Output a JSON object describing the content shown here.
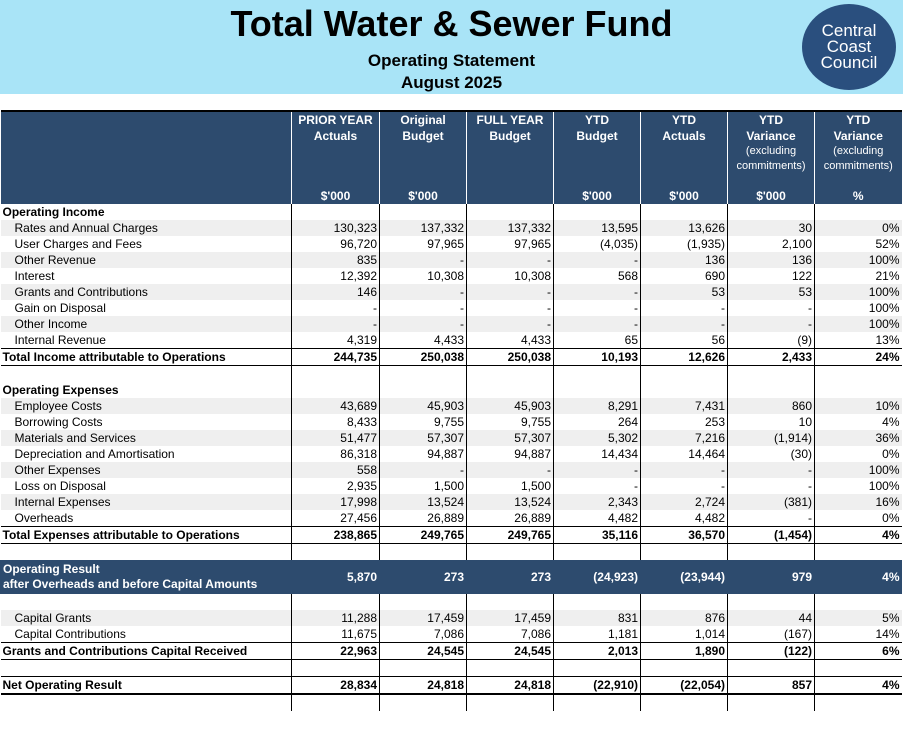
{
  "header": {
    "title": "Total Water & Sewer Fund",
    "subtitle": "Operating Statement",
    "period": "August 2025",
    "logo_lines": [
      "Central",
      "Coast",
      "Council"
    ]
  },
  "columns": [
    {
      "line1": "PRIOR YEAR",
      "line2": "Actuals",
      "line3": "",
      "line4": "",
      "unit": "$'000"
    },
    {
      "line1": "Original",
      "line2": "Budget",
      "line3": "",
      "line4": "",
      "unit": "$'000"
    },
    {
      "line1": "FULL YEAR",
      "line2": "Budget",
      "line3": "",
      "line4": "",
      "unit": ""
    },
    {
      "line1": "YTD",
      "line2": "Budget",
      "line3": "",
      "line4": "",
      "unit": "$'000"
    },
    {
      "line1": "YTD",
      "line2": "Actuals",
      "line3": "",
      "line4": "",
      "unit": "$'000"
    },
    {
      "line1": "YTD",
      "line2": "Variance",
      "line3": "(excluding",
      "line4": "commitments)",
      "unit": "$'000"
    },
    {
      "line1": "YTD",
      "line2": "Variance",
      "line3": "(excluding",
      "line4": "commitments)",
      "unit": "%"
    }
  ],
  "rows": [
    {
      "kind": "section",
      "label": "Operating Income",
      "values": [
        "",
        "",
        "",
        "",
        "",
        "",
        ""
      ]
    },
    {
      "kind": "item",
      "label": "Rates and Annual Charges",
      "values": [
        "130,323",
        "137,332",
        "137,332",
        "13,595",
        "13,626",
        "30",
        "0%"
      ]
    },
    {
      "kind": "item",
      "label": "User Charges and Fees",
      "values": [
        "96,720",
        "97,965",
        "97,965",
        "(4,035)",
        "(1,935)",
        "2,100",
        "52%"
      ]
    },
    {
      "kind": "item",
      "label": "Other Revenue",
      "values": [
        "835",
        "-",
        "-",
        "-",
        "136",
        "136",
        "100%"
      ]
    },
    {
      "kind": "item",
      "label": "Interest",
      "values": [
        "12,392",
        "10,308",
        "10,308",
        "568",
        "690",
        "122",
        "21%"
      ]
    },
    {
      "kind": "item",
      "label": "Grants and Contributions",
      "values": [
        "146",
        "-",
        "-",
        "-",
        "53",
        "53",
        "100%"
      ]
    },
    {
      "kind": "item",
      "label": "Gain on Disposal",
      "values": [
        "-",
        "-",
        "-",
        "-",
        "-",
        "-",
        "100%"
      ]
    },
    {
      "kind": "item",
      "label": "Other Income",
      "values": [
        "-",
        "-",
        "-",
        "-",
        "-",
        "-",
        "100%"
      ]
    },
    {
      "kind": "item",
      "label": "Internal Revenue",
      "values": [
        "4,319",
        "4,433",
        "4,433",
        "65",
        "56",
        "(9)",
        "13%"
      ]
    },
    {
      "kind": "total",
      "label": "Total Income attributable to Operations",
      "values": [
        "244,735",
        "250,038",
        "250,038",
        "10,193",
        "12,626",
        "2,433",
        "24%"
      ]
    },
    {
      "kind": "blank",
      "label": "",
      "values": [
        "",
        "",
        "",
        "",
        "",
        "",
        ""
      ]
    },
    {
      "kind": "section",
      "label": "Operating Expenses",
      "values": [
        "",
        "",
        "",
        "",
        "",
        "",
        ""
      ]
    },
    {
      "kind": "item",
      "label": "Employee Costs",
      "values": [
        "43,689",
        "45,903",
        "45,903",
        "8,291",
        "7,431",
        "860",
        "10%"
      ]
    },
    {
      "kind": "item",
      "label": "Borrowing Costs",
      "values": [
        "8,433",
        "9,755",
        "9,755",
        "264",
        "253",
        "10",
        "4%"
      ]
    },
    {
      "kind": "item",
      "label": "Materials and Services",
      "values": [
        "51,477",
        "57,307",
        "57,307",
        "5,302",
        "7,216",
        "(1,914)",
        "36%"
      ]
    },
    {
      "kind": "item",
      "label": "Depreciation and Amortisation",
      "values": [
        "86,318",
        "94,887",
        "94,887",
        "14,434",
        "14,464",
        "(30)",
        "0%"
      ]
    },
    {
      "kind": "item",
      "label": "Other Expenses",
      "values": [
        "558",
        "-",
        "-",
        "-",
        "-",
        "-",
        "100%"
      ]
    },
    {
      "kind": "item",
      "label": "Loss on Disposal",
      "values": [
        "2,935",
        "1,500",
        "1,500",
        "-",
        "-",
        "-",
        "100%"
      ]
    },
    {
      "kind": "item",
      "label": "Internal Expenses",
      "values": [
        "17,998",
        "13,524",
        "13,524",
        "2,343",
        "2,724",
        "(381)",
        "16%"
      ]
    },
    {
      "kind": "item",
      "label": "Overheads",
      "values": [
        "27,456",
        "26,889",
        "26,889",
        "4,482",
        "4,482",
        "-",
        "0%"
      ]
    },
    {
      "kind": "total",
      "label": "Total Expenses attributable to Operations",
      "values": [
        "238,865",
        "249,765",
        "249,765",
        "35,116",
        "36,570",
        "(1,454)",
        "4%"
      ]
    },
    {
      "kind": "blank",
      "label": "",
      "values": [
        "",
        "",
        "",
        "",
        "",
        "",
        ""
      ]
    },
    {
      "kind": "result",
      "label": "Operating Result",
      "label2": "after Overheads and before Capital Amounts",
      "values": [
        "5,870",
        "273",
        "273",
        "(24,923)",
        "(23,944)",
        "979",
        "4%"
      ]
    },
    {
      "kind": "blank",
      "label": "",
      "values": [
        "",
        "",
        "",
        "",
        "",
        "",
        ""
      ]
    },
    {
      "kind": "item",
      "label": "Capital Grants",
      "values": [
        "11,288",
        "17,459",
        "17,459",
        "831",
        "876",
        "44",
        "5%"
      ]
    },
    {
      "kind": "item",
      "label": "Capital Contributions",
      "values": [
        "11,675",
        "7,086",
        "7,086",
        "1,181",
        "1,014",
        "(167)",
        "14%"
      ]
    },
    {
      "kind": "total",
      "label": "Grants and Contributions Capital Received",
      "values": [
        "22,963",
        "24,545",
        "24,545",
        "2,013",
        "1,890",
        "(122)",
        "6%"
      ]
    },
    {
      "kind": "blank",
      "label": "",
      "values": [
        "",
        "",
        "",
        "",
        "",
        "",
        ""
      ]
    },
    {
      "kind": "net",
      "label": "Net Operating Result",
      "values": [
        "28,834",
        "24,818",
        "24,818",
        "(22,910)",
        "(22,054)",
        "857",
        "4%"
      ]
    },
    {
      "kind": "tail",
      "label": "",
      "values": [
        "",
        "",
        "",
        "",
        "",
        "",
        ""
      ]
    }
  ]
}
